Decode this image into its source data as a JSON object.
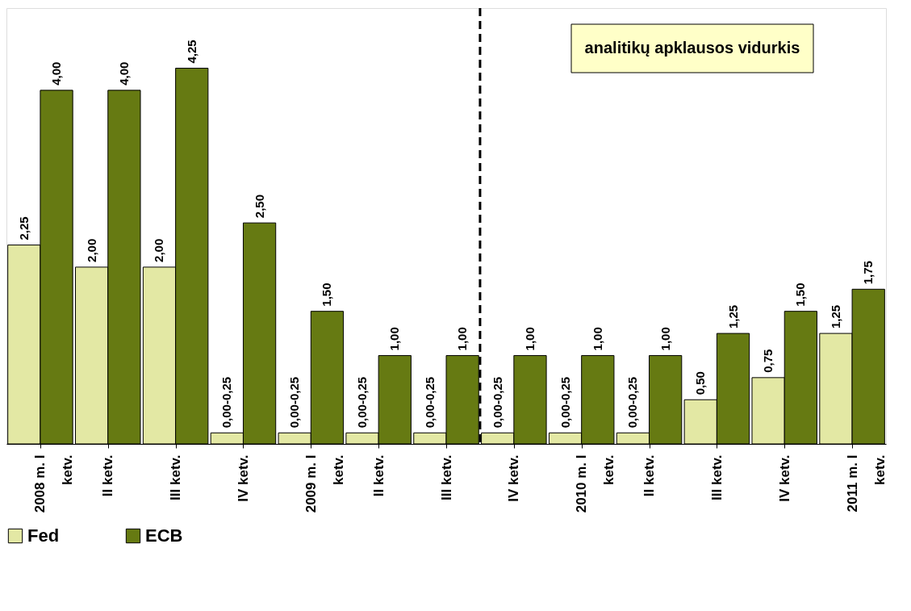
{
  "chart_data": {
    "type": "bar",
    "categories": [
      "2008 m. I ketv.",
      "II ketv.",
      "III ketv.",
      "IV ketv.",
      "2009 m. I ketv.",
      "II ketv.",
      "III ketv.",
      "IV ketv.",
      "2010 m. I ketv.",
      "II ketv.",
      "III ketv.",
      "IV ketv.",
      "2011 m. I ketv."
    ],
    "series": [
      {
        "name": "Fed",
        "color": "#e3e8a4",
        "values": [
          2.25,
          2.0,
          2.0,
          0.125,
          0.125,
          0.125,
          0.125,
          0.125,
          0.125,
          0.125,
          0.5,
          0.75,
          1.25
        ],
        "value_labels": [
          "2,25",
          "2,00",
          "2,00",
          "0,00-0,25",
          "0,00-0,25",
          "0,00-0,25",
          "0,00-0,25",
          "0,00-0,25",
          "0,00-0,25",
          "0,00-0,25",
          "0,50",
          "0,75",
          "1,25"
        ]
      },
      {
        "name": "ECB",
        "color": "#667a12",
        "values": [
          4.0,
          4.0,
          4.25,
          2.5,
          1.5,
          1.0,
          1.0,
          1.0,
          1.0,
          1.0,
          1.25,
          1.5,
          1.75
        ],
        "value_labels": [
          "4,00",
          "4,00",
          "4,25",
          "2,50",
          "1,50",
          "1,00",
          "1,00",
          "1,00",
          "1,00",
          "1,00",
          "1,25",
          "1,50",
          "1,75"
        ]
      }
    ],
    "annotations": [
      "analitikų apklausos vidurkis"
    ],
    "tick_labels": "x",
    "grid": false,
    "legend": "bottom"
  }
}
